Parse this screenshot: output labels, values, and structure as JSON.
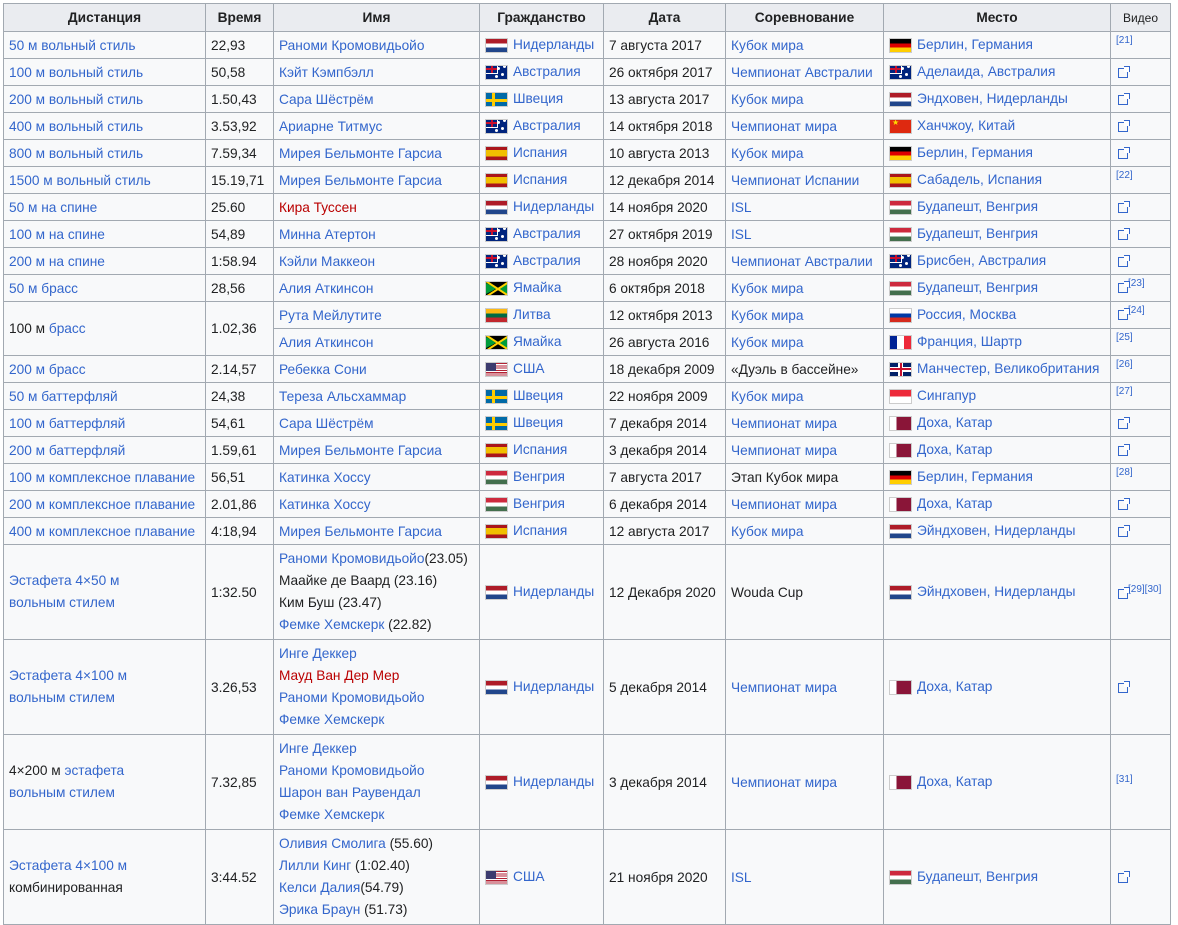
{
  "headers": [
    "Дистанция",
    "Время",
    "Имя",
    "Гражданство",
    "Дата",
    "Соревнование",
    "Место",
    "Видео"
  ],
  "rows": [
    {
      "dist_pre": "50 м ",
      "dist_link": "вольный стиль",
      "time": "22,93",
      "names": [
        {
          "t": "Раноми Кромовидьойо",
          "c": "link"
        }
      ],
      "flag": "nl",
      "country": "Нидерланды",
      "date": "7 августа 2017",
      "comp": "Кубок мира",
      "comp_link": true,
      "place_flag": "de",
      "place": "Берлин, Германия",
      "video": {
        "ref": "[21]",
        "icon": false
      }
    },
    {
      "dist_pre": "100 м ",
      "dist_link": "вольный стиль",
      "time": "50,58",
      "names": [
        {
          "t": "Кэйт Кэмпбэлл",
          "c": "link"
        }
      ],
      "flag": "au",
      "country": "Австралия",
      "date": "26 октября 2017",
      "comp": "Чемпионат Австралии",
      "comp_link": true,
      "place_flag": "au",
      "place": "Аделаида, Австралия",
      "video": {
        "ref": "",
        "icon": true
      }
    },
    {
      "dist_pre": "200 м ",
      "dist_link": "вольный стиль",
      "time": "1.50,43",
      "names": [
        {
          "t": "Сара Шёстрём",
          "c": "link"
        }
      ],
      "flag": "se",
      "country": "Швеция",
      "date": "13 августа 2017",
      "comp": "Кубок мира",
      "comp_link": true,
      "place_flag": "nl",
      "place": "Эндховен, Нидерланды",
      "video": {
        "ref": "",
        "icon": true
      }
    },
    {
      "dist_pre": "400 м ",
      "dist_link": "вольный стиль",
      "time": "3.53,92",
      "names": [
        {
          "t": "Ариарне Титмус",
          "c": "link"
        }
      ],
      "flag": "au",
      "country": "Австралия",
      "date": "14 октября 2018",
      "comp": "Чемпионат мира",
      "comp_link": true,
      "place_flag": "cn",
      "place": "Ханчжоу, Китай",
      "video": {
        "ref": "",
        "icon": true
      }
    },
    {
      "dist_pre": "800 м ",
      "dist_link": "вольный стиль",
      "time": "7.59,34",
      "names": [
        {
          "t": "Мирея Бельмонте Гарсиа",
          "c": "link"
        }
      ],
      "flag": "es",
      "country": "Испания",
      "date": "10 августа 2013",
      "comp": "Кубок мира",
      "comp_link": true,
      "place_flag": "de",
      "place": "Берлин, Германия",
      "video": {
        "ref": "",
        "icon": true
      }
    },
    {
      "dist_pre": "1500 м ",
      "dist_link": "вольный стиль",
      "time": "15.19,71",
      "names": [
        {
          "t": "Мирея Бельмонте Гарсиа",
          "c": "link"
        }
      ],
      "flag": "es",
      "country": "Испания",
      "date": "12 декабря 2014",
      "comp": "Чемпионат Испании",
      "comp_link": true,
      "place_flag": "es",
      "place": "Сабадель, Испания",
      "video": {
        "ref": "[22]",
        "icon": false
      }
    },
    {
      "dist_pre": "50 м ",
      "dist_link": "на спине",
      "time": "25.60",
      "names": [
        {
          "t": "Кира Туссен",
          "c": "red"
        }
      ],
      "flag": "nl",
      "country": "Нидерланды",
      "date": "14 ноября 2020",
      "comp": "ISL",
      "comp_link": true,
      "place_flag": "hu",
      "place": "Будапешт, Венгрия",
      "video": {
        "ref": "",
        "icon": true
      }
    },
    {
      "dist_pre": "100 м ",
      "dist_link": "на спине",
      "time": "54,89",
      "names": [
        {
          "t": "Минна Атертон",
          "c": "link"
        }
      ],
      "flag": "au",
      "country": "Австралия",
      "date": "27 октября 2019",
      "comp": "ISL",
      "comp_link": true,
      "place_flag": "hu",
      "place": "Будапешт, Венгрия",
      "video": {
        "ref": "",
        "icon": true
      }
    },
    {
      "dist_pre": "200 м ",
      "dist_link": "на спине",
      "time": "1:58.94",
      "names": [
        {
          "t": "Кэйли Маккеон",
          "c": "link"
        }
      ],
      "flag": "au",
      "country": "Австралия",
      "date": "28 ноября 2020",
      "comp": "Чемпионат Австралии",
      "comp_link": true,
      "place_flag": "au",
      "place": "Брисбен, Австралия",
      "video": {
        "ref": "",
        "icon": true
      }
    },
    {
      "dist_pre": "50 м ",
      "dist_link": "брасс",
      "time": "28,56",
      "names": [
        {
          "t": "Алия Аткинсон",
          "c": "link"
        }
      ],
      "flag": "jm",
      "country": "Ямайка",
      "date": "6 октября 2018",
      "comp": "Кубок мира",
      "comp_link": true,
      "place_flag": "hu",
      "place": "Будапешт, Венгрия",
      "video": {
        "ref": "[23]",
        "icon": true
      }
    }
  ],
  "breast100": {
    "dist_pre": "100 м ",
    "dist_link": "брасс",
    "time": "1.02,36",
    "sub": [
      {
        "name": "Рута Мейлутите",
        "flag": "lt",
        "country": "Литва",
        "date": "12 октября 2013",
        "comp": "Кубок мира",
        "place_flag": "ru",
        "place": "Россия, Москва",
        "video": {
          "ref": "[24]",
          "icon": true
        }
      },
      {
        "name": "Алия Аткинсон",
        "flag": "jm",
        "country": "Ямайка",
        "date": "26 августа 2016",
        "comp": "Кубок мира",
        "place_flag": "fr",
        "place": "Франция, Шартр",
        "video": {
          "ref": "[25]",
          "icon": false
        }
      }
    ]
  },
  "rows2": [
    {
      "dist_pre": "200 м ",
      "dist_link": "брасс",
      "time": "2.14,57",
      "names": [
        {
          "t": "Ребекка Сони",
          "c": "link"
        }
      ],
      "flag": "us",
      "country": "США",
      "date": "18 декабря 2009",
      "comp": "«Дуэль в бассейне»",
      "comp_link": false,
      "place_flag": "gb",
      "place": "Манчестер, Великобритания",
      "video": {
        "ref": "[26]",
        "icon": false
      }
    },
    {
      "dist_pre": "50 м ",
      "dist_link": "баттерфляй",
      "time": "24,38",
      "names": [
        {
          "t": "Тереза Альсхаммар",
          "c": "link"
        }
      ],
      "flag": "se",
      "country": "Швеция",
      "date": "22 ноября 2009",
      "comp": "Кубок мира",
      "comp_link": true,
      "place_flag": "sg",
      "place": "Сингапур",
      "video": {
        "ref": "[27]",
        "icon": false
      }
    },
    {
      "dist_pre": "100 м ",
      "dist_link": "баттерфляй",
      "time": "54,61",
      "names": [
        {
          "t": "Сара Шёстрём",
          "c": "link"
        }
      ],
      "flag": "se",
      "country": "Швеция",
      "date": "7 декабря 2014",
      "comp": "Чемпионат мира",
      "comp_link": true,
      "place_flag": "qa",
      "place": "Доха, Катар",
      "video": {
        "ref": "",
        "icon": true
      }
    },
    {
      "dist_pre": "200 м ",
      "dist_link": "баттерфляй",
      "time": "1.59,61",
      "names": [
        {
          "t": "Мирея Бельмонте Гарсиа",
          "c": "link"
        }
      ],
      "flag": "es",
      "country": "Испания",
      "date": "3 декабря 2014",
      "comp": "Чемпионат мира",
      "comp_link": true,
      "place_flag": "qa",
      "place": "Доха, Катар",
      "video": {
        "ref": "",
        "icon": true
      }
    },
    {
      "dist_pre": "100 м ",
      "dist_link": "комплексное плавание",
      "time": "56,51",
      "names": [
        {
          "t": "Катинка Хоссу",
          "c": "link"
        }
      ],
      "flag": "hu",
      "country": "Венгрия",
      "date": "7 августа 2017",
      "comp": "Этап Кубок мира",
      "comp_link": false,
      "place_flag": "de",
      "place": "Берлин, Германия",
      "video": {
        "ref": "[28]",
        "icon": false
      }
    },
    {
      "dist_pre": "200 м ",
      "dist_link": "комплексное плавание",
      "time": "2.01,86",
      "names": [
        {
          "t": "Катинка Хоссу",
          "c": "link"
        }
      ],
      "flag": "hu",
      "country": "Венгрия",
      "date": "6 декабря 2014",
      "comp": "Чемпионат мира",
      "comp_link": true,
      "place_flag": "qa",
      "place": "Доха, Катар",
      "video": {
        "ref": "",
        "icon": true
      }
    },
    {
      "dist_pre": "400 м ",
      "dist_link": "комплексное плавание",
      "time": "4:18,94",
      "names": [
        {
          "t": "Мирея Бельмонте Гарсиа",
          "c": "link"
        }
      ],
      "flag": "es",
      "country": "Испания",
      "date": "12 августа 2017",
      "comp": "Кубок мира",
      "comp_link": true,
      "place_flag": "nl",
      "place": "Эйндховен, Нидерланды",
      "video": {
        "ref": "",
        "icon": true
      }
    }
  ],
  "relays": [
    {
      "dist": [
        {
          "t": "Эстафета 4×50 м",
          "c": "link"
        },
        {
          "t": "вольным стилем",
          "c": "link"
        }
      ],
      "time": "1:32.50",
      "names": [
        {
          "t": "Раноми Кромовидьойо",
          "c": "link",
          "extra": "(23.05)"
        },
        {
          "t": "Маайке де Ваард (23.16)",
          "c": "plain"
        },
        {
          "t": "Ким Буш (23.47)",
          "c": "plain"
        },
        {
          "t": "Фемке Хемскерк",
          "c": "link",
          "extra": " (22.82)"
        }
      ],
      "flag": "nl",
      "country": "Нидерланды",
      "date": "12 Декабря 2020",
      "comp": "Wouda Cup",
      "comp_link": false,
      "place_flag": "nl",
      "place": "Эйндховен, Нидерланды",
      "video": {
        "ref": "[29][30]",
        "icon": true
      },
      "h": 93
    },
    {
      "dist": [
        {
          "t": "Эстафета 4×100 м",
          "c": "link"
        },
        {
          "t": "вольным стилем",
          "c": "link"
        }
      ],
      "time": "3.26,53",
      "names": [
        {
          "t": "Инге Деккер",
          "c": "link"
        },
        {
          "t": "Мауд Ван Дер Мер",
          "c": "red"
        },
        {
          "t": "Раноми Кромовидьойо",
          "c": "link"
        },
        {
          "t": "Фемке Хемскерк",
          "c": "link"
        }
      ],
      "flag": "nl",
      "country": "Нидерланды",
      "date": "5 декабря 2014",
      "comp": "Чемпионат мира",
      "comp_link": true,
      "place_flag": "qa",
      "place": "Доха, Катар",
      "video": {
        "ref": "",
        "icon": true
      },
      "h": 93
    },
    {
      "dist": [
        {
          "t": "4×200 м ",
          "c": "plain",
          "link2": "эстафета"
        },
        {
          "t": "вольным стилем",
          "c": "link"
        }
      ],
      "time": "7.32,85",
      "names": [
        {
          "t": "Инге Деккер",
          "c": "link"
        },
        {
          "t": "Раноми Кромовидьойо",
          "c": "link"
        },
        {
          "t": "Шарон ван Раувендал",
          "c": "link"
        },
        {
          "t": "Фемке Хемскерк",
          "c": "link"
        }
      ],
      "flag": "nl",
      "country": "Нидерланды",
      "date": "3 декабря 2014",
      "comp": "Чемпионат мира",
      "comp_link": true,
      "place_flag": "qa",
      "place": "Доха, Катар",
      "video": {
        "ref": "[31]",
        "icon": false
      },
      "h": 93
    },
    {
      "dist": [
        {
          "t": "Эстафета 4×100 м",
          "c": "link"
        },
        {
          "t": "комбинированная",
          "c": "plain"
        }
      ],
      "time": "3:44.52",
      "names": [
        {
          "t": "Оливия Смолига",
          "c": "link",
          "extra": " (55.60)"
        },
        {
          "t": "Лилли Кинг",
          "c": "link",
          "extra": " (1:02.40)"
        },
        {
          "t": "Келси Далия",
          "c": "link",
          "extra": "(54.79)"
        },
        {
          "t": "Эрика Браун",
          "c": "link",
          "extra": " (51.73)"
        }
      ],
      "flag": "us",
      "country": "США",
      "date": "21 ноября 2020",
      "comp": "ISL",
      "comp_link": true,
      "place_flag": "hu",
      "place": "Будапешт, Венгрия",
      "video": {
        "ref": "",
        "icon": true
      },
      "h": 93
    }
  ]
}
